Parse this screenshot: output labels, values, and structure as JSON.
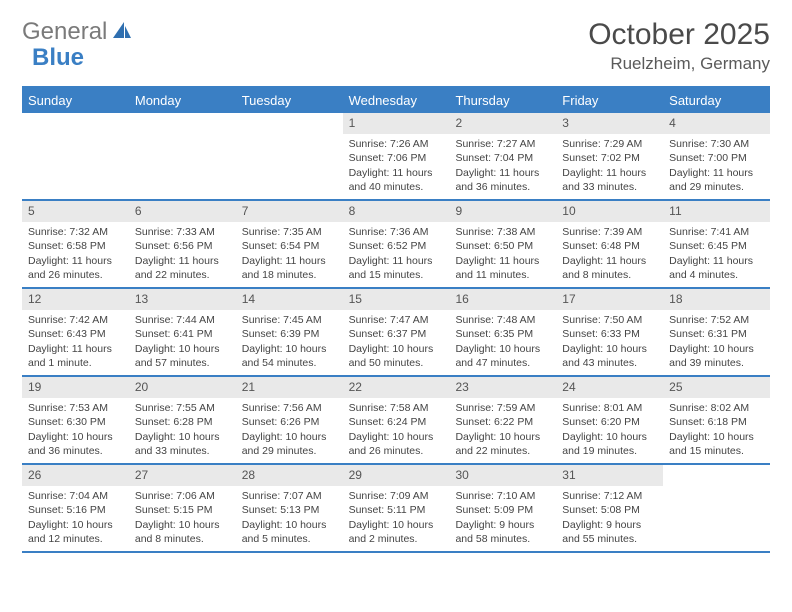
{
  "brand": {
    "name_a": "General",
    "name_b": "Blue"
  },
  "title": "October 2025",
  "location": "Ruelzheim, Germany",
  "colors": {
    "accent": "#3a7fc4",
    "header_text": "#ffffff",
    "daynum_bg": "#e9e9e9",
    "text": "#3a3a3a"
  },
  "day_names": [
    "Sunday",
    "Monday",
    "Tuesday",
    "Wednesday",
    "Thursday",
    "Friday",
    "Saturday"
  ],
  "weeks": [
    [
      {
        "day": "",
        "empty": true
      },
      {
        "day": "",
        "empty": true
      },
      {
        "day": "",
        "empty": true
      },
      {
        "day": "1",
        "sunrise": "7:26 AM",
        "sunset": "7:06 PM",
        "daylight": "11 hours and 40 minutes."
      },
      {
        "day": "2",
        "sunrise": "7:27 AM",
        "sunset": "7:04 PM",
        "daylight": "11 hours and 36 minutes."
      },
      {
        "day": "3",
        "sunrise": "7:29 AM",
        "sunset": "7:02 PM",
        "daylight": "11 hours and 33 minutes."
      },
      {
        "day": "4",
        "sunrise": "7:30 AM",
        "sunset": "7:00 PM",
        "daylight": "11 hours and 29 minutes."
      }
    ],
    [
      {
        "day": "5",
        "sunrise": "7:32 AM",
        "sunset": "6:58 PM",
        "daylight": "11 hours and 26 minutes."
      },
      {
        "day": "6",
        "sunrise": "7:33 AM",
        "sunset": "6:56 PM",
        "daylight": "11 hours and 22 minutes."
      },
      {
        "day": "7",
        "sunrise": "7:35 AM",
        "sunset": "6:54 PM",
        "daylight": "11 hours and 18 minutes."
      },
      {
        "day": "8",
        "sunrise": "7:36 AM",
        "sunset": "6:52 PM",
        "daylight": "11 hours and 15 minutes."
      },
      {
        "day": "9",
        "sunrise": "7:38 AM",
        "sunset": "6:50 PM",
        "daylight": "11 hours and 11 minutes."
      },
      {
        "day": "10",
        "sunrise": "7:39 AM",
        "sunset": "6:48 PM",
        "daylight": "11 hours and 8 minutes."
      },
      {
        "day": "11",
        "sunrise": "7:41 AM",
        "sunset": "6:45 PM",
        "daylight": "11 hours and 4 minutes."
      }
    ],
    [
      {
        "day": "12",
        "sunrise": "7:42 AM",
        "sunset": "6:43 PM",
        "daylight": "11 hours and 1 minute."
      },
      {
        "day": "13",
        "sunrise": "7:44 AM",
        "sunset": "6:41 PM",
        "daylight": "10 hours and 57 minutes."
      },
      {
        "day": "14",
        "sunrise": "7:45 AM",
        "sunset": "6:39 PM",
        "daylight": "10 hours and 54 minutes."
      },
      {
        "day": "15",
        "sunrise": "7:47 AM",
        "sunset": "6:37 PM",
        "daylight": "10 hours and 50 minutes."
      },
      {
        "day": "16",
        "sunrise": "7:48 AM",
        "sunset": "6:35 PM",
        "daylight": "10 hours and 47 minutes."
      },
      {
        "day": "17",
        "sunrise": "7:50 AM",
        "sunset": "6:33 PM",
        "daylight": "10 hours and 43 minutes."
      },
      {
        "day": "18",
        "sunrise": "7:52 AM",
        "sunset": "6:31 PM",
        "daylight": "10 hours and 39 minutes."
      }
    ],
    [
      {
        "day": "19",
        "sunrise": "7:53 AM",
        "sunset": "6:30 PM",
        "daylight": "10 hours and 36 minutes."
      },
      {
        "day": "20",
        "sunrise": "7:55 AM",
        "sunset": "6:28 PM",
        "daylight": "10 hours and 33 minutes."
      },
      {
        "day": "21",
        "sunrise": "7:56 AM",
        "sunset": "6:26 PM",
        "daylight": "10 hours and 29 minutes."
      },
      {
        "day": "22",
        "sunrise": "7:58 AM",
        "sunset": "6:24 PM",
        "daylight": "10 hours and 26 minutes."
      },
      {
        "day": "23",
        "sunrise": "7:59 AM",
        "sunset": "6:22 PM",
        "daylight": "10 hours and 22 minutes."
      },
      {
        "day": "24",
        "sunrise": "8:01 AM",
        "sunset": "6:20 PM",
        "daylight": "10 hours and 19 minutes."
      },
      {
        "day": "25",
        "sunrise": "8:02 AM",
        "sunset": "6:18 PM",
        "daylight": "10 hours and 15 minutes."
      }
    ],
    [
      {
        "day": "26",
        "sunrise": "7:04 AM",
        "sunset": "5:16 PM",
        "daylight": "10 hours and 12 minutes."
      },
      {
        "day": "27",
        "sunrise": "7:06 AM",
        "sunset": "5:15 PM",
        "daylight": "10 hours and 8 minutes."
      },
      {
        "day": "28",
        "sunrise": "7:07 AM",
        "sunset": "5:13 PM",
        "daylight": "10 hours and 5 minutes."
      },
      {
        "day": "29",
        "sunrise": "7:09 AM",
        "sunset": "5:11 PM",
        "daylight": "10 hours and 2 minutes."
      },
      {
        "day": "30",
        "sunrise": "7:10 AM",
        "sunset": "5:09 PM",
        "daylight": "9 hours and 58 minutes."
      },
      {
        "day": "31",
        "sunrise": "7:12 AM",
        "sunset": "5:08 PM",
        "daylight": "9 hours and 55 minutes."
      },
      {
        "day": "",
        "empty": true
      }
    ]
  ],
  "labels": {
    "sunrise": "Sunrise:",
    "sunset": "Sunset:",
    "daylight": "Daylight:"
  }
}
